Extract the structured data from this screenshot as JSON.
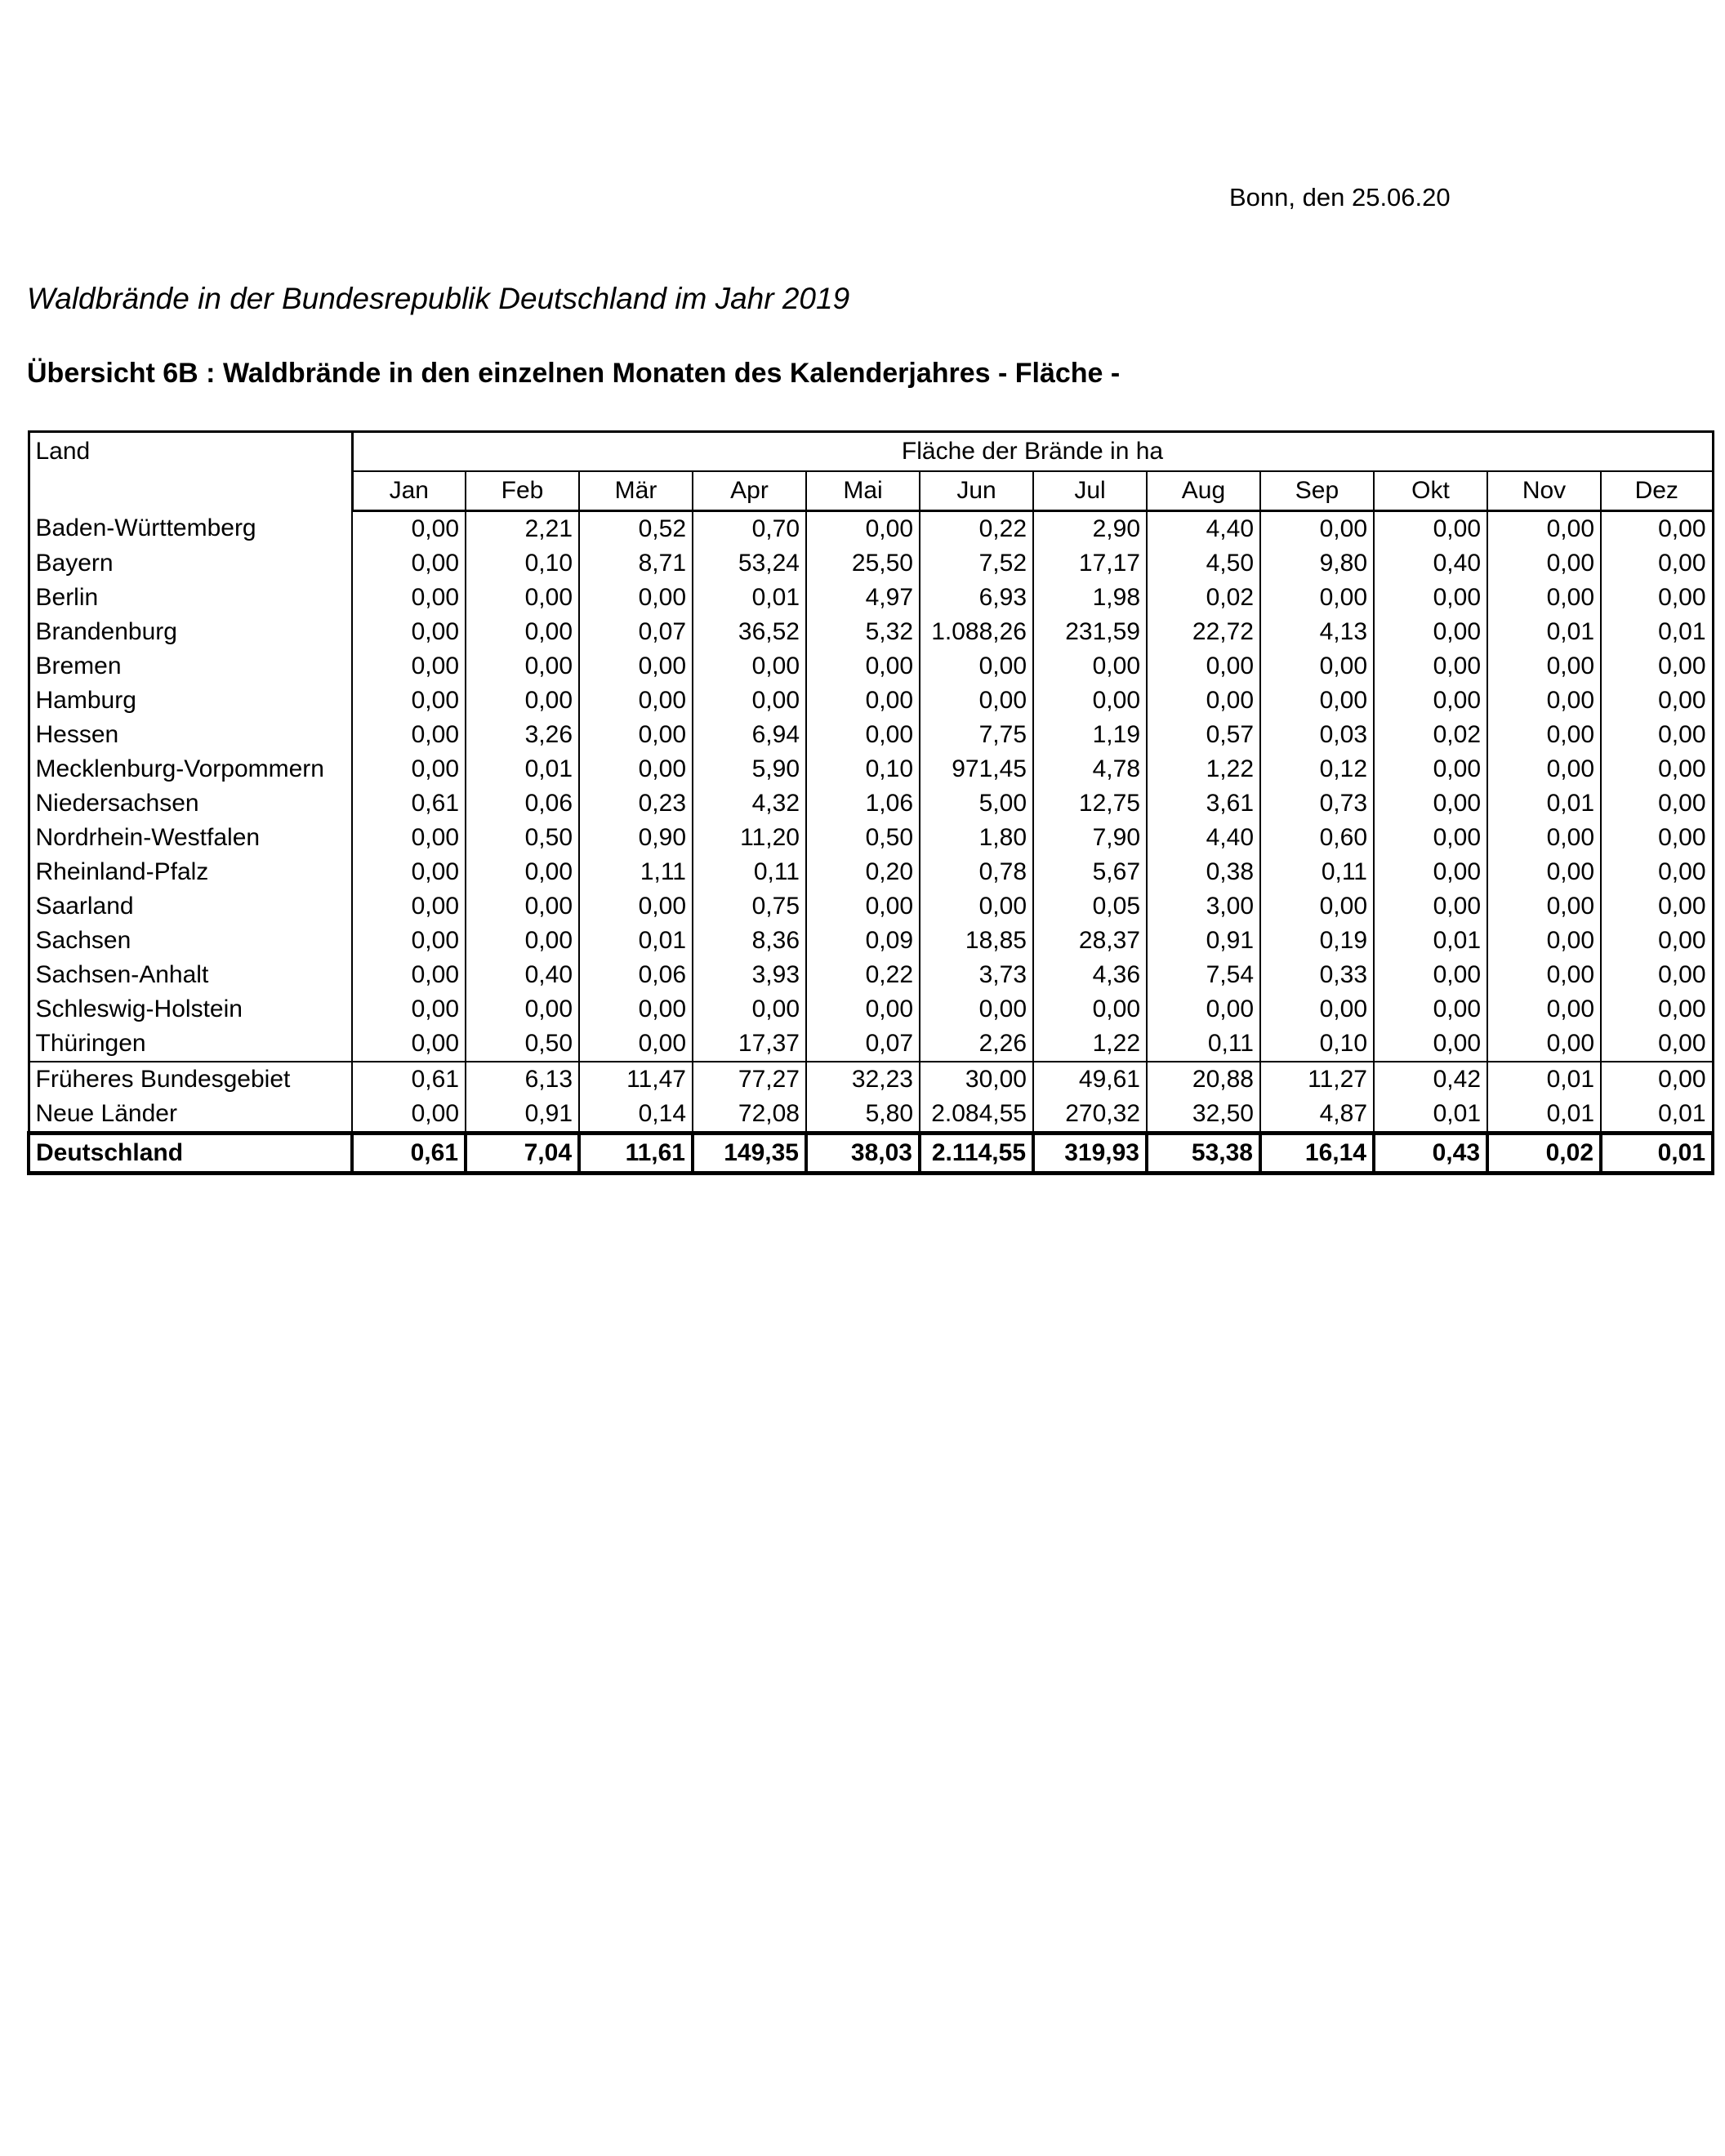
{
  "header": {
    "date_line": "Bonn, den 25.06.20",
    "title": "Waldbrände in der Bundesrepublik Deutschland im Jahr 2019",
    "subtitle": "Übersicht 6B : Waldbrände in den einzelnen Monaten des Kalenderjahres - Fläche -"
  },
  "table": {
    "land_header": "Land",
    "group_header": "Fläche der Brände in ha",
    "months": [
      "Jan",
      "Feb",
      "Mär",
      "Apr",
      "Mai",
      "Jun",
      "Jul",
      "Aug",
      "Sep",
      "Okt",
      "Nov",
      "Dez"
    ],
    "rows": [
      {
        "land": "Baden-Württemberg",
        "values": [
          "0,00",
          "2,21",
          "0,52",
          "0,70",
          "0,00",
          "0,22",
          "2,90",
          "4,40",
          "0,00",
          "0,00",
          "0,00",
          "0,00"
        ]
      },
      {
        "land": "Bayern",
        "values": [
          "0,00",
          "0,10",
          "8,71",
          "53,24",
          "25,50",
          "7,52",
          "17,17",
          "4,50",
          "9,80",
          "0,40",
          "0,00",
          "0,00"
        ]
      },
      {
        "land": "Berlin",
        "values": [
          "0,00",
          "0,00",
          "0,00",
          "0,01",
          "4,97",
          "6,93",
          "1,98",
          "0,02",
          "0,00",
          "0,00",
          "0,00",
          "0,00"
        ]
      },
      {
        "land": "Brandenburg",
        "values": [
          "0,00",
          "0,00",
          "0,07",
          "36,52",
          "5,32",
          "1.088,26",
          "231,59",
          "22,72",
          "4,13",
          "0,00",
          "0,01",
          "0,01"
        ]
      },
      {
        "land": "Bremen",
        "values": [
          "0,00",
          "0,00",
          "0,00",
          "0,00",
          "0,00",
          "0,00",
          "0,00",
          "0,00",
          "0,00",
          "0,00",
          "0,00",
          "0,00"
        ]
      },
      {
        "land": "Hamburg",
        "values": [
          "0,00",
          "0,00",
          "0,00",
          "0,00",
          "0,00",
          "0,00",
          "0,00",
          "0,00",
          "0,00",
          "0,00",
          "0,00",
          "0,00"
        ]
      },
      {
        "land": "Hessen",
        "values": [
          "0,00",
          "3,26",
          "0,00",
          "6,94",
          "0,00",
          "7,75",
          "1,19",
          "0,57",
          "0,03",
          "0,02",
          "0,00",
          "0,00"
        ]
      },
      {
        "land": "Mecklenburg-Vorpommern",
        "values": [
          "0,00",
          "0,01",
          "0,00",
          "5,90",
          "0,10",
          "971,45",
          "4,78",
          "1,22",
          "0,12",
          "0,00",
          "0,00",
          "0,00"
        ]
      },
      {
        "land": "Niedersachsen",
        "values": [
          "0,61",
          "0,06",
          "0,23",
          "4,32",
          "1,06",
          "5,00",
          "12,75",
          "3,61",
          "0,73",
          "0,00",
          "0,01",
          "0,00"
        ]
      },
      {
        "land": "Nordrhein-Westfalen",
        "values": [
          "0,00",
          "0,50",
          "0,90",
          "11,20",
          "0,50",
          "1,80",
          "7,90",
          "4,40",
          "0,60",
          "0,00",
          "0,00",
          "0,00"
        ]
      },
      {
        "land": "Rheinland-Pfalz",
        "values": [
          "0,00",
          "0,00",
          "1,11",
          "0,11",
          "0,20",
          "0,78",
          "5,67",
          "0,38",
          "0,11",
          "0,00",
          "0,00",
          "0,00"
        ]
      },
      {
        "land": "Saarland",
        "values": [
          "0,00",
          "0,00",
          "0,00",
          "0,75",
          "0,00",
          "0,00",
          "0,05",
          "3,00",
          "0,00",
          "0,00",
          "0,00",
          "0,00"
        ]
      },
      {
        "land": "Sachsen",
        "values": [
          "0,00",
          "0,00",
          "0,01",
          "8,36",
          "0,09",
          "18,85",
          "28,37",
          "0,91",
          "0,19",
          "0,01",
          "0,00",
          "0,00"
        ]
      },
      {
        "land": "Sachsen-Anhalt",
        "values": [
          "0,00",
          "0,40",
          "0,06",
          "3,93",
          "0,22",
          "3,73",
          "4,36",
          "7,54",
          "0,33",
          "0,00",
          "0,00",
          "0,00"
        ]
      },
      {
        "land": "Schleswig-Holstein",
        "values": [
          "0,00",
          "0,00",
          "0,00",
          "0,00",
          "0,00",
          "0,00",
          "0,00",
          "0,00",
          "0,00",
          "0,00",
          "0,00",
          "0,00"
        ]
      },
      {
        "land": "Thüringen",
        "values": [
          "0,00",
          "0,50",
          "0,00",
          "17,37",
          "0,07",
          "2,26",
          "1,22",
          "0,11",
          "0,10",
          "0,00",
          "0,00",
          "0,00"
        ]
      }
    ],
    "subtotals": [
      {
        "land": "Früheres Bundesgebiet",
        "values": [
          "0,61",
          "6,13",
          "11,47",
          "77,27",
          "32,23",
          "30,00",
          "49,61",
          "20,88",
          "11,27",
          "0,42",
          "0,01",
          "0,00"
        ]
      },
      {
        "land": "Neue Länder",
        "values": [
          "0,00",
          "0,91",
          "0,14",
          "72,08",
          "5,80",
          "2.084,55",
          "270,32",
          "32,50",
          "4,87",
          "0,01",
          "0,01",
          "0,01"
        ]
      }
    ],
    "total": {
      "land": "Deutschland",
      "values": [
        "0,61",
        "7,04",
        "11,61",
        "149,35",
        "38,03",
        "2.114,55",
        "319,93",
        "53,38",
        "16,14",
        "0,43",
        "0,02",
        "0,01"
      ]
    }
  }
}
